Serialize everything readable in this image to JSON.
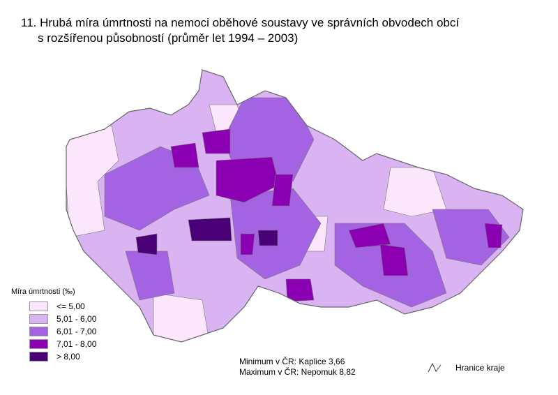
{
  "title": {
    "line1": "11. Hrubá míra úmrtnosti na nemoci oběhové soustavy ve správních obvodech obcí",
    "line2": "s rozšířenou působností (průměr let 1994 – 2003)"
  },
  "legend": {
    "title": "Míra úmrtnosti (‰)",
    "classes": [
      {
        "label": "<= 5,00",
        "color": "#fce6fc"
      },
      {
        "label": "5,01 - 6,00",
        "color": "#dab4f2"
      },
      {
        "label": "6,01 - 7,00",
        "color": "#a463e2"
      },
      {
        "label": "7,01 - 8,00",
        "color": "#8a00b2"
      },
      {
        "label": "> 8,00",
        "color": "#4a0076"
      }
    ]
  },
  "stats": {
    "minimum": "Minimum v ČR: Kaplice 3,66",
    "maximum": "Maximum v ČR: Nepomuk 8,82"
  },
  "border_legend": {
    "label": "Hranice kraje",
    "icon": "zigzag-line-icon"
  }
}
